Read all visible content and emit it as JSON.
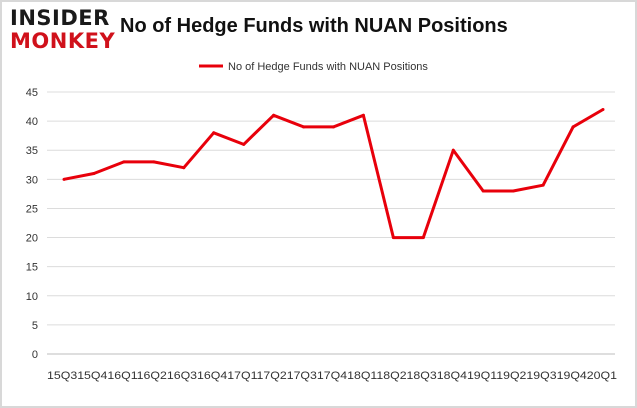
{
  "brand": {
    "logo_top": "INSIDER",
    "logo_bottom": "MONKEY"
  },
  "chart_data": {
    "type": "line",
    "title": "No of Hedge Funds with NUAN Positions",
    "categories": [
      "2015Q3",
      "2015Q4",
      "2016Q1",
      "2016Q2",
      "2016Q3",
      "2016Q4",
      "2017Q1",
      "2017Q2",
      "2017Q3",
      "2017Q4",
      "2018Q1",
      "2018Q2",
      "2018Q3",
      "2018Q4",
      "2019Q1",
      "2019Q2",
      "2019Q3",
      "2019Q4",
      "2020Q1"
    ],
    "x_tick_text": "15Q315Q416Q116Q216Q316Q417Q117Q217Q317Q418Q118Q218Q318Q419Q119Q219Q319Q420Q1",
    "series": [
      {
        "name": "No of Hedge Funds with NUAN Positions",
        "values": [
          30,
          31,
          33,
          33,
          32,
          38,
          36,
          41,
          39,
          39,
          41,
          20,
          20,
          35,
          28,
          28,
          29,
          39,
          42
        ]
      }
    ],
    "ylim": [
      0,
      45
    ],
    "yticks": [
      0,
      5,
      10,
      15,
      20,
      25,
      30,
      35,
      40,
      45
    ],
    "grid": true,
    "legend": "top-center",
    "line_color": "#e8000b"
  }
}
